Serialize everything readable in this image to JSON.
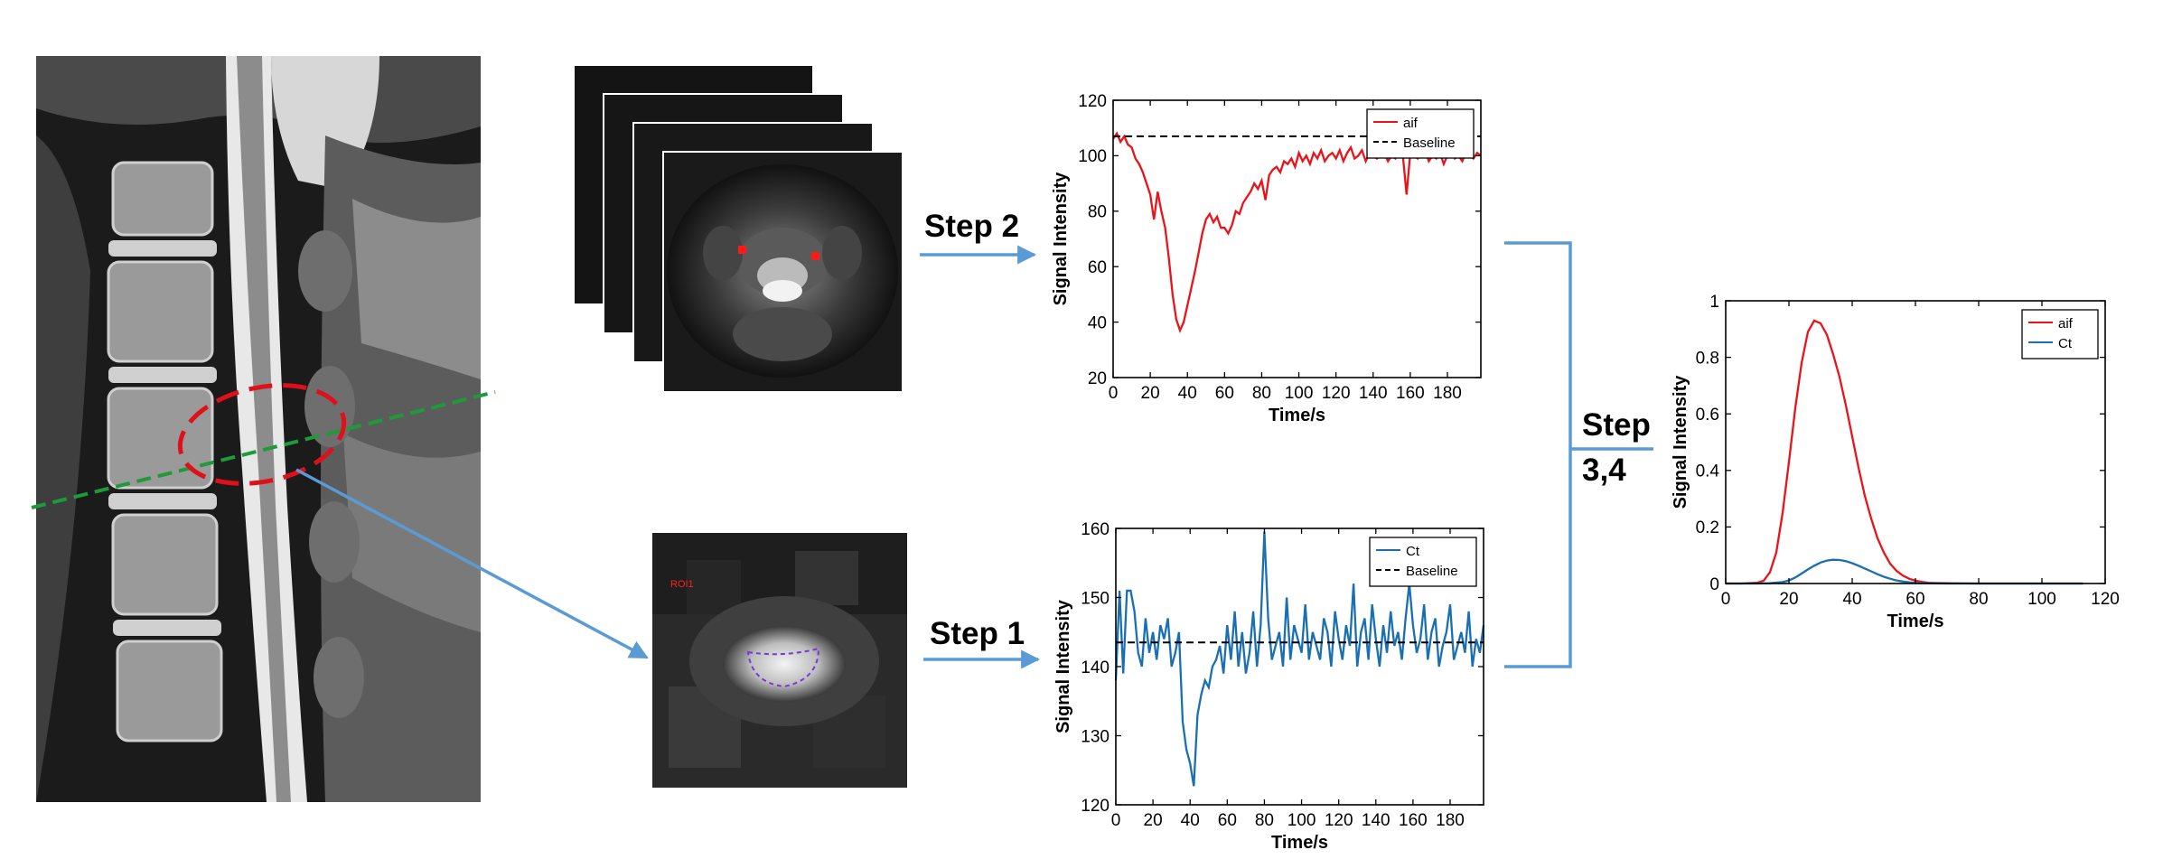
{
  "steps": {
    "step1": "Step 1",
    "step2": "Step 2",
    "step34_line1": "Step",
    "step34_line2": "3,4"
  },
  "roi_label": "ROI1",
  "colors": {
    "aif": "#e8141a",
    "ct": "#1a6fb0",
    "arrow": "#5b9bd5",
    "slice_line": "#1f9a3a",
    "roi_ellipse": "#e0101a",
    "roi_contour": "#7a38d8"
  },
  "chart_data": [
    {
      "id": "aif-chart",
      "type": "line",
      "xlabel": "Time/s",
      "ylabel": "Signal Intensity",
      "xlim": [
        0,
        198
      ],
      "ylim": [
        20,
        120
      ],
      "xticks": [
        0,
        20,
        40,
        60,
        80,
        100,
        120,
        140,
        160,
        180
      ],
      "yticks": [
        20,
        40,
        60,
        80,
        100,
        120
      ],
      "legend_position": "top-right",
      "series": [
        {
          "name": "aif",
          "style": "solid",
          "color": "#e8141a",
          "x": [
            0,
            2,
            4,
            6,
            8,
            10,
            12,
            14,
            16,
            18,
            20,
            22,
            24,
            26,
            28,
            30,
            32,
            34,
            36,
            38,
            40,
            42,
            44,
            46,
            48,
            50,
            52,
            54,
            56,
            58,
            60,
            62,
            64,
            66,
            68,
            70,
            72,
            74,
            76,
            78,
            80,
            82,
            84,
            86,
            88,
            90,
            92,
            94,
            96,
            98,
            100,
            102,
            104,
            106,
            108,
            110,
            112,
            114,
            116,
            118,
            120,
            122,
            124,
            126,
            128,
            130,
            132,
            134,
            136,
            138,
            140,
            142,
            144,
            146,
            148,
            150,
            152,
            154,
            156,
            158,
            160,
            162,
            164,
            166,
            168,
            170,
            172,
            174,
            176,
            178,
            180,
            182,
            184,
            186,
            188,
            190,
            192,
            194,
            196,
            198
          ],
          "y": [
            106,
            108,
            105,
            107,
            104,
            103,
            99,
            97,
            94,
            90,
            86,
            77,
            87,
            80,
            74,
            63,
            50,
            41,
            37,
            40,
            46,
            52,
            58,
            65,
            72,
            77,
            79,
            76,
            78,
            74,
            74,
            72,
            75,
            80,
            79,
            83,
            85,
            87,
            90,
            88,
            91,
            84,
            93,
            95,
            96,
            94,
            98,
            97,
            99,
            96,
            101,
            98,
            100,
            97,
            101,
            99,
            102,
            98,
            100,
            101,
            99,
            102,
            98,
            101,
            103,
            99,
            100,
            102,
            98,
            101,
            100,
            99,
            100,
            101,
            98,
            100,
            99,
            101,
            100,
            86,
            101,
            100,
            99,
            101,
            102,
            98,
            100,
            99,
            101,
            97,
            100,
            102,
            99,
            100,
            98,
            101,
            100,
            99,
            101,
            100
          ]
        },
        {
          "name": "Baseline",
          "style": "dashed",
          "color": "#000000",
          "x": [
            0,
            198
          ],
          "y": [
            107,
            107
          ]
        }
      ]
    },
    {
      "id": "ct-chart",
      "type": "line",
      "xlabel": "Time/s",
      "ylabel": "Signal Intensity",
      "xlim": [
        0,
        198
      ],
      "ylim": [
        120,
        160
      ],
      "xticks": [
        0,
        20,
        40,
        60,
        80,
        100,
        120,
        140,
        160,
        180
      ],
      "yticks": [
        120,
        130,
        140,
        150,
        160
      ],
      "legend_position": "top-right",
      "series": [
        {
          "name": "Ct",
          "style": "solid",
          "color": "#1a6fb0",
          "x": [
            0,
            2,
            4,
            6,
            8,
            10,
            12,
            14,
            16,
            18,
            20,
            22,
            24,
            26,
            28,
            30,
            32,
            34,
            36,
            38,
            40,
            42,
            44,
            46,
            48,
            50,
            52,
            54,
            56,
            58,
            60,
            62,
            64,
            66,
            68,
            70,
            72,
            74,
            76,
            78,
            80,
            82,
            84,
            86,
            88,
            90,
            92,
            94,
            96,
            98,
            100,
            102,
            104,
            106,
            108,
            110,
            112,
            114,
            116,
            118,
            120,
            122,
            124,
            126,
            128,
            130,
            132,
            134,
            136,
            138,
            140,
            142,
            144,
            146,
            148,
            150,
            152,
            154,
            156,
            158,
            160,
            162,
            164,
            166,
            168,
            170,
            172,
            174,
            176,
            178,
            180,
            182,
            184,
            186,
            188,
            190,
            192,
            194,
            196,
            198
          ],
          "y": [
            138,
            151,
            139,
            151,
            151,
            148,
            142,
            140,
            147,
            142,
            145,
            141,
            146,
            144,
            147,
            140,
            142,
            145,
            132,
            128,
            126,
            122.7,
            133,
            136,
            138,
            137,
            140,
            141,
            143,
            139,
            146,
            141,
            148,
            140,
            145,
            139,
            142,
            148,
            140,
            146,
            159.5,
            147,
            141,
            143,
            145,
            140,
            150,
            141,
            146,
            144,
            142,
            149,
            141,
            145,
            143,
            141,
            147,
            145,
            140,
            148,
            144,
            141,
            146,
            143,
            152,
            140,
            145,
            147,
            141,
            149,
            144,
            140,
            146,
            142,
            148,
            143,
            145,
            141,
            147,
            152,
            146,
            142,
            144,
            149,
            141,
            145,
            147,
            140,
            143,
            145,
            149,
            141,
            143,
            145,
            142,
            148,
            140,
            144,
            142,
            146
          ]
        },
        {
          "name": "Baseline",
          "style": "dashed",
          "color": "#000000",
          "x": [
            0,
            198
          ],
          "y": [
            143.5,
            143.5
          ]
        }
      ]
    },
    {
      "id": "fit-chart",
      "type": "line",
      "xlabel": "Time/s",
      "ylabel": "Signal Intensity",
      "xlim": [
        0,
        120
      ],
      "ylim": [
        0,
        1
      ],
      "xticks": [
        0,
        20,
        40,
        60,
        80,
        100,
        120
      ],
      "yticks": [
        0,
        0.2,
        0.4,
        0.6,
        0.8,
        1
      ],
      "legend_position": "top-right",
      "series": [
        {
          "name": "aif",
          "style": "solid",
          "color": "#e8141a",
          "x": [
            0,
            5,
            10,
            12,
            14,
            16,
            18,
            20,
            22,
            24,
            26,
            28,
            30,
            32,
            34,
            36,
            38,
            40,
            42,
            44,
            46,
            48,
            50,
            52,
            54,
            56,
            58,
            60,
            62,
            64,
            66,
            70,
            80,
            90,
            100,
            110,
            113
          ],
          "y": [
            0,
            0,
            0.003,
            0.01,
            0.04,
            0.11,
            0.25,
            0.43,
            0.62,
            0.78,
            0.89,
            0.93,
            0.92,
            0.88,
            0.81,
            0.73,
            0.63,
            0.52,
            0.41,
            0.31,
            0.23,
            0.16,
            0.11,
            0.07,
            0.045,
            0.028,
            0.017,
            0.01,
            0.006,
            0.003,
            0.002,
            0.001,
            0,
            0,
            0,
            0,
            0
          ]
        },
        {
          "name": "Ct",
          "style": "solid",
          "color": "#1a6fb0",
          "x": [
            0,
            10,
            14,
            18,
            20,
            22,
            24,
            26,
            28,
            30,
            32,
            34,
            36,
            38,
            40,
            42,
            44,
            46,
            48,
            50,
            52,
            54,
            56,
            58,
            60,
            64,
            70,
            80,
            90,
            100,
            110,
            113
          ],
          "y": [
            0,
            0,
            0.001,
            0.005,
            0.011,
            0.021,
            0.035,
            0.05,
            0.063,
            0.074,
            0.081,
            0.084,
            0.083,
            0.079,
            0.072,
            0.063,
            0.053,
            0.043,
            0.033,
            0.024,
            0.017,
            0.011,
            0.007,
            0.004,
            0.002,
            0.001,
            0,
            0,
            0,
            0,
            0,
            0
          ]
        }
      ]
    }
  ]
}
